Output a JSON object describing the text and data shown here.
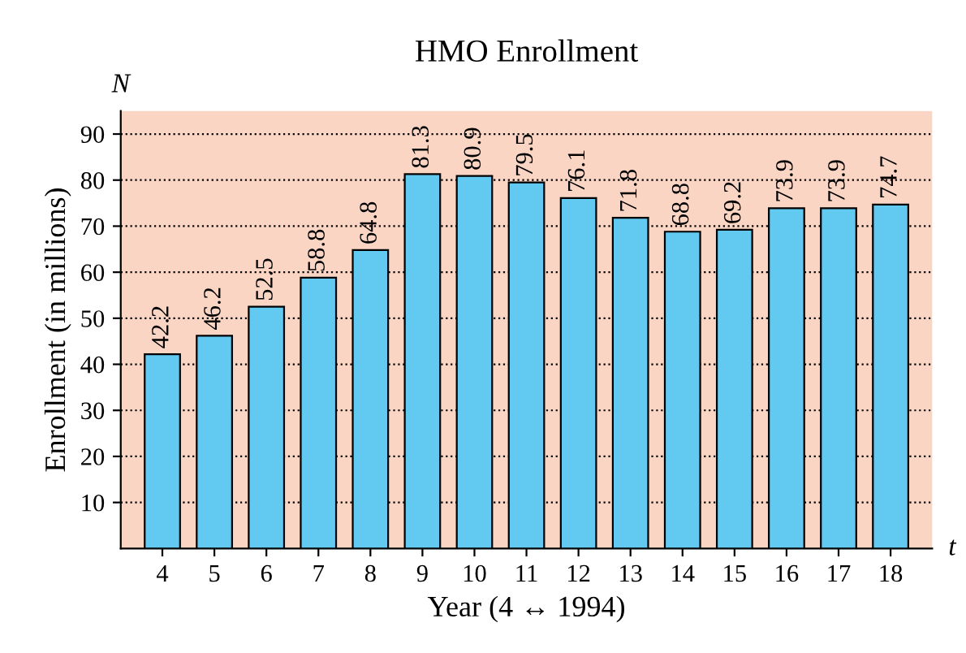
{
  "chart_data": {
    "type": "bar",
    "title": "HMO Enrollment",
    "xlabel": "Year (4 ↔ 1994)",
    "ylabel": "Enrollment (in millions)",
    "categories": [
      "4",
      "5",
      "6",
      "7",
      "8",
      "9",
      "10",
      "11",
      "12",
      "13",
      "14",
      "15",
      "16",
      "17",
      "18"
    ],
    "values": [
      42.2,
      46.2,
      52.5,
      58.8,
      64.8,
      81.3,
      80.9,
      79.5,
      76.1,
      71.8,
      68.8,
      69.2,
      73.9,
      73.9,
      74.7
    ],
    "color": "#62c9f1",
    "ylim": [
      0,
      95
    ],
    "yticks": [
      10,
      20,
      30,
      40,
      50,
      60,
      70,
      80,
      90
    ],
    "grid": "y",
    "data_labels": true,
    "annotations": [
      "N",
      "t"
    ]
  }
}
